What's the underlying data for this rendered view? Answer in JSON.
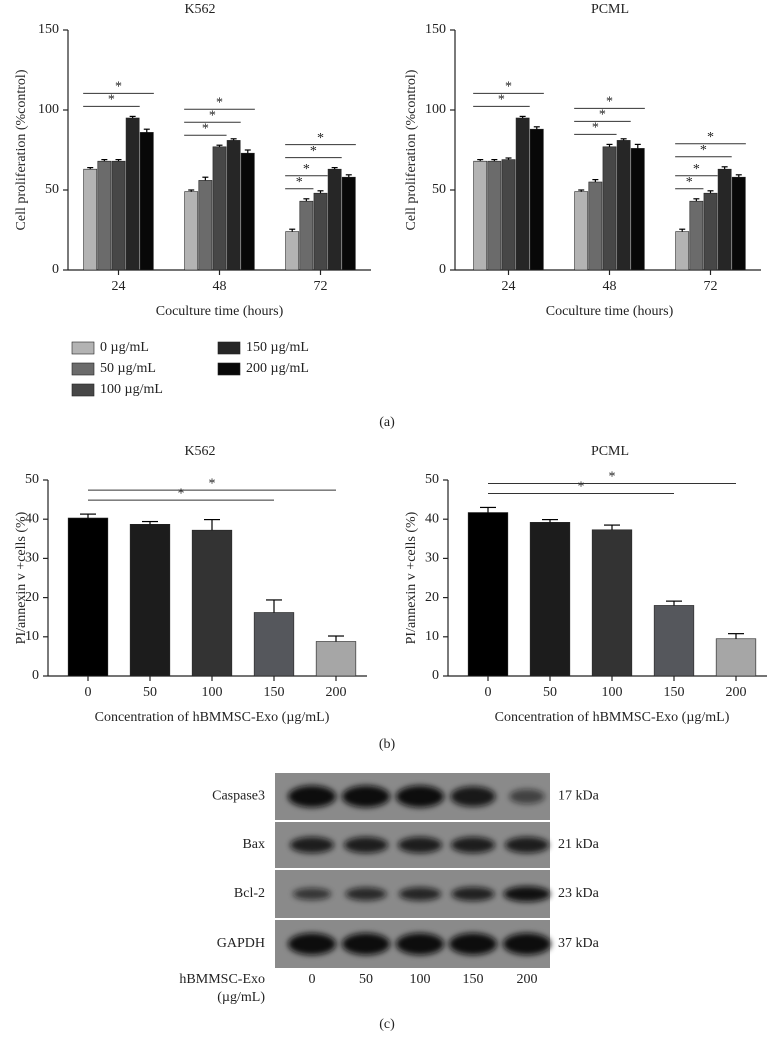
{
  "panel_labels": [
    "(a)",
    "(b)",
    "(c)"
  ],
  "chart_data": [
    {
      "type": "bar",
      "title": "K562",
      "xlabel": "Coculture time (hours)",
      "ylabel": "Cell proliferation (%control)",
      "categories": [
        "24",
        "48",
        "72"
      ],
      "series": [
        {
          "name": "0 µg/mL",
          "color": "#b3b3b3",
          "values": [
            63,
            49,
            24
          ],
          "errors": [
            1,
            1,
            1.5
          ]
        },
        {
          "name": "50 µg/mL",
          "color": "#6b6b6b",
          "values": [
            68,
            56,
            43
          ],
          "errors": [
            1,
            2,
            1.5
          ]
        },
        {
          "name": "100 µg/mL",
          "color": "#474747",
          "values": [
            68,
            77,
            48
          ],
          "errors": [
            1,
            1,
            1.5
          ]
        },
        {
          "name": "150 µg/mL",
          "color": "#262626",
          "values": [
            95,
            81,
            63
          ],
          "errors": [
            1,
            1,
            1
          ]
        },
        {
          "name": "200 µg/mL",
          "color": "#080808",
          "values": [
            86,
            73,
            58
          ],
          "errors": [
            2,
            2,
            1.5
          ]
        }
      ],
      "ylim": [
        0,
        150
      ],
      "yticks": [
        0,
        50,
        100,
        150
      ],
      "significance": [
        {
          "category": 0,
          "from": 0,
          "to": 3,
          "label": "*"
        },
        {
          "category": 0,
          "from": 0,
          "to": 4,
          "label": "*"
        },
        {
          "category": 1,
          "from": 0,
          "to": 2,
          "label": "*"
        },
        {
          "category": 1,
          "from": 0,
          "to": 3,
          "label": "*"
        },
        {
          "category": 1,
          "from": 0,
          "to": 4,
          "label": "*"
        },
        {
          "category": 2,
          "from": 0,
          "to": 1,
          "label": "*"
        },
        {
          "category": 2,
          "from": 0,
          "to": 2,
          "label": "*"
        },
        {
          "category": 2,
          "from": 0,
          "to": 3,
          "label": "*"
        },
        {
          "category": 2,
          "from": 0,
          "to": 4,
          "label": "*"
        }
      ]
    },
    {
      "type": "bar",
      "title": "PCML",
      "xlabel": "Coculture time (hours)",
      "ylabel": "Cell proliferation (%control)",
      "categories": [
        "24",
        "48",
        "72"
      ],
      "series": [
        {
          "color": "#b3b3b3",
          "values": [
            68,
            49,
            24
          ],
          "errors": [
            1,
            1,
            1.5
          ]
        },
        {
          "color": "#6b6b6b",
          "values": [
            68,
            55,
            43
          ],
          "errors": [
            1,
            1.5,
            1.5
          ]
        },
        {
          "color": "#474747",
          "values": [
            69,
            77,
            48
          ],
          "errors": [
            1,
            1.5,
            1.5
          ]
        },
        {
          "color": "#262626",
          "values": [
            95,
            81,
            63
          ],
          "errors": [
            1,
            1,
            1.5
          ]
        },
        {
          "color": "#080808",
          "values": [
            88,
            76,
            58
          ],
          "errors": [
            1.5,
            2.5,
            1.5
          ]
        }
      ],
      "ylim": [
        0,
        150
      ],
      "yticks": [
        0,
        50,
        100,
        150
      ],
      "significance": [
        {
          "category": 0,
          "from": 0,
          "to": 3,
          "label": "*"
        },
        {
          "category": 0,
          "from": 0,
          "to": 4,
          "label": "*"
        },
        {
          "category": 1,
          "from": 0,
          "to": 2,
          "label": "*"
        },
        {
          "category": 1,
          "from": 0,
          "to": 3,
          "label": "*"
        },
        {
          "category": 1,
          "from": 0,
          "to": 4,
          "label": "*"
        },
        {
          "category": 2,
          "from": 0,
          "to": 1,
          "label": "*"
        },
        {
          "category": 2,
          "from": 0,
          "to": 2,
          "label": "*"
        },
        {
          "category": 2,
          "from": 0,
          "to": 3,
          "label": "*"
        },
        {
          "category": 2,
          "from": 0,
          "to": 4,
          "label": "*"
        }
      ]
    },
    {
      "type": "bar",
      "title": "K562",
      "xlabel": "Concentration of hBMMSC-Exo (µg/mL)",
      "ylabel": "PI/annexin v +cells (%)",
      "categories": [
        "0",
        "50",
        "100",
        "150",
        "200"
      ],
      "values": [
        40.3,
        38.7,
        37.2,
        16.2,
        8.8
      ],
      "errors": [
        1.0,
        0.7,
        2.7,
        3.2,
        1.4
      ],
      "colors": [
        "#000000",
        "#1c1c1c",
        "#333333",
        "#55575c",
        "#a6a6a6"
      ],
      "ylim": [
        0,
        50
      ],
      "yticks": [
        0,
        10,
        20,
        30,
        40,
        50
      ],
      "significance": [
        {
          "from": 0,
          "to": 3,
          "label": "*"
        },
        {
          "from": 0,
          "to": 4,
          "label": "*"
        }
      ]
    },
    {
      "type": "bar",
      "title": "PCML",
      "xlabel": "Concentration of hBMMSC-Exo (µg/mL)",
      "ylabel": "PI/annexin v +cells (%)",
      "categories": [
        "0",
        "50",
        "100",
        "150",
        "200"
      ],
      "values": [
        41.7,
        39.2,
        37.3,
        18.0,
        9.5
      ],
      "errors": [
        1.3,
        0.7,
        1.2,
        1.1,
        1.3
      ],
      "colors": [
        "#000000",
        "#1c1c1c",
        "#333333",
        "#55575c",
        "#a6a6a6"
      ],
      "ylim": [
        0,
        50
      ],
      "yticks": [
        0,
        10,
        20,
        30,
        40,
        50
      ],
      "significance": [
        {
          "from": 0,
          "to": 3,
          "label": "*"
        },
        {
          "from": 0,
          "to": 4,
          "label": "*"
        }
      ]
    }
  ],
  "blot": {
    "rows": [
      {
        "label": "Caspase3",
        "size": "17 kDa"
      },
      {
        "label": "Bax",
        "size": "21 kDa"
      },
      {
        "label": "Bcl-2",
        "size": "23 kDa"
      },
      {
        "label": "GAPDH",
        "size": "37 kDa"
      }
    ],
    "xlabel": "hBMMSC-Exo",
    "xunit": "(µg/mL)",
    "lanes": [
      "0",
      "50",
      "100",
      "150",
      "200"
    ]
  }
}
